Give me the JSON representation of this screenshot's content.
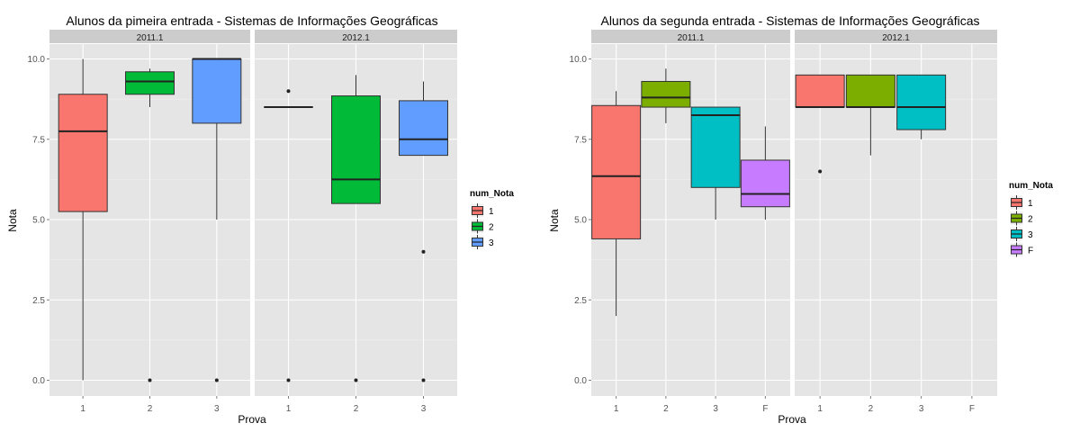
{
  "chart_data": [
    {
      "type": "boxplot",
      "title": "Alunos da pimeira entrada -  Sistemas de Informações Geográficas",
      "xlabel": "Prova",
      "ylabel": "Nota",
      "ylim": [
        -0.3,
        10.3
      ],
      "yticks": [
        "0.0",
        "2.5",
        "5.0",
        "7.5",
        "10.0"
      ],
      "categories": [
        "1",
        "2",
        "3"
      ],
      "legend": {
        "title": "num_Nota",
        "position": "right",
        "entries": [
          {
            "label": "1",
            "color": "#F8766D"
          },
          {
            "label": "2",
            "color": "#00BA38"
          },
          {
            "label": "3",
            "color": "#619CFF"
          }
        ]
      },
      "facets": [
        {
          "label": "2011.1",
          "boxes": [
            {
              "category": "1",
              "min": 0,
              "q1": 5.25,
              "median": 7.75,
              "q3": 8.9,
              "max": 10,
              "outliers": []
            },
            {
              "category": "2",
              "min": 8.5,
              "q1": 8.9,
              "median": 9.3,
              "q3": 9.6,
              "max": 9.7,
              "outliers": [
                0
              ]
            },
            {
              "category": "3",
              "min": 5.0,
              "q1": 8.0,
              "median": 10.0,
              "q3": 10.0,
              "max": 10.0,
              "outliers": [
                0
              ]
            }
          ]
        },
        {
          "label": "2012.1",
          "boxes": [
            {
              "category": "1",
              "min": 8.5,
              "q1": 8.5,
              "median": 8.5,
              "q3": 8.5,
              "max": 8.5,
              "outliers": [
                9.0,
                0
              ]
            },
            {
              "category": "2",
              "min": 5.5,
              "q1": 5.5,
              "median": 6.25,
              "q3": 8.85,
              "max": 9.5,
              "outliers": [
                0
              ]
            },
            {
              "category": "3",
              "min": 7.0,
              "q1": 7.0,
              "median": 7.5,
              "q3": 8.7,
              "max": 9.3,
              "outliers": [
                4.0,
                0
              ]
            }
          ]
        }
      ]
    },
    {
      "type": "boxplot",
      "title": "Alunos da segunda entrada -  Sistemas de Informações Geográficas",
      "xlabel": "Prova",
      "ylabel": "Nota",
      "ylim": [
        -0.3,
        10.3
      ],
      "yticks": [
        "0.0",
        "2.5",
        "5.0",
        "7.5",
        "10.0"
      ],
      "categories": [
        "1",
        "2",
        "3",
        "F"
      ],
      "legend": {
        "title": "num_Nota",
        "position": "right",
        "entries": [
          {
            "label": "1",
            "color": "#F8766D"
          },
          {
            "label": "2",
            "color": "#7CAE00"
          },
          {
            "label": "3",
            "color": "#00BFC4"
          },
          {
            "label": "F",
            "color": "#C77CFF"
          }
        ]
      },
      "facets": [
        {
          "label": "2011.1",
          "boxes": [
            {
              "category": "1",
              "min": 2.0,
              "q1": 4.4,
              "median": 6.35,
              "q3": 8.55,
              "max": 9.0,
              "outliers": []
            },
            {
              "category": "2",
              "min": 8.0,
              "q1": 8.5,
              "median": 8.8,
              "q3": 9.3,
              "max": 9.7,
              "outliers": []
            },
            {
              "category": "3",
              "min": 5.0,
              "q1": 6.0,
              "median": 8.25,
              "q3": 8.5,
              "max": 8.5,
              "outliers": []
            },
            {
              "category": "F",
              "min": 5.0,
              "q1": 5.4,
              "median": 5.8,
              "q3": 6.85,
              "max": 7.9,
              "outliers": []
            }
          ]
        },
        {
          "label": "2012.1",
          "boxes": [
            {
              "category": "1",
              "min": 8.5,
              "q1": 8.5,
              "median": 8.5,
              "q3": 9.5,
              "max": 9.5,
              "outliers": [
                6.5
              ]
            },
            {
              "category": "2",
              "min": 7.0,
              "q1": 8.5,
              "median": 8.5,
              "q3": 9.5,
              "max": 9.5,
              "outliers": []
            },
            {
              "category": "3",
              "min": 7.5,
              "q1": 7.8,
              "median": 8.5,
              "q3": 9.5,
              "max": 9.5,
              "outliers": []
            }
          ]
        }
      ]
    }
  ]
}
